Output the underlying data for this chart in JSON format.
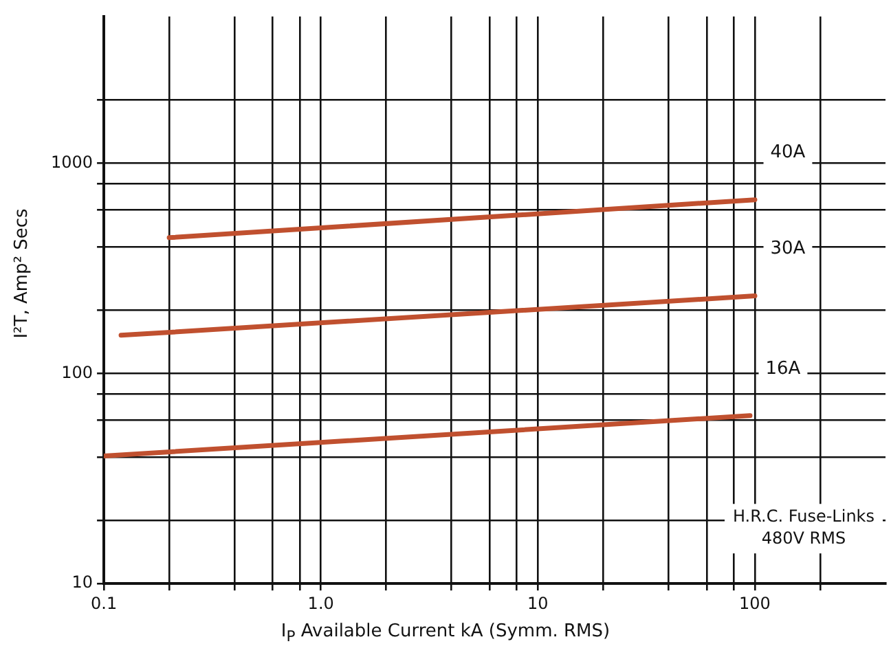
{
  "chart_data": {
    "type": "line",
    "xlabel": "I$_{P}$ Available Current kA (Symm. RMS)",
    "ylabel": "I²T, Amp² Secs",
    "log": "xy",
    "grid": true,
    "legend": false,
    "marker": "none",
    "line_style": "solid",
    "xlim": [
      0.1,
      400
    ],
    "ylim": [
      10,
      5000
    ],
    "xticks": [
      {
        "value": 0.1,
        "label": "0.1"
      },
      {
        "value": 0.2,
        "label": null
      },
      {
        "value": 0.4,
        "label": null
      },
      {
        "value": 0.6,
        "label": null
      },
      {
        "value": 0.8,
        "label": null
      },
      {
        "value": 1,
        "label": "1.0"
      },
      {
        "value": 2,
        "label": null
      },
      {
        "value": 4,
        "label": null
      },
      {
        "value": 6,
        "label": null
      },
      {
        "value": 8,
        "label": null
      },
      10,
      {
        "value": 20,
        "label": null
      },
      {
        "value": 40,
        "label": null
      },
      {
        "value": 60,
        "label": null
      },
      {
        "value": 80,
        "label": null
      },
      100,
      {
        "value": 200,
        "label": null
      }
    ],
    "yticks": [
      10,
      {
        "value": 20,
        "label": null
      },
      {
        "value": 40,
        "label": null
      },
      {
        "value": 60,
        "label": null
      },
      {
        "value": 80,
        "label": null
      },
      100,
      {
        "value": 200,
        "label": null
      },
      {
        "value": 400,
        "label": null
      },
      {
        "value": 600,
        "label": null
      },
      {
        "value": 800,
        "label": null
      },
      1000,
      {
        "value": 2000,
        "label": null
      }
    ],
    "series": [
      {
        "name": "40A",
        "color": "#c0502f",
        "x": [
          0.2,
          100
        ],
        "values": [
          443,
          671
        ]
      },
      {
        "name": "30A",
        "color": "#c0502f",
        "x": [
          0.12,
          100
        ],
        "values": [
          152,
          234
        ]
      },
      {
        "name": "16A",
        "color": "#c0502f",
        "x": [
          0.1,
          95
        ],
        "values": [
          40.5,
          63
        ]
      }
    ],
    "annotations": [
      "H.R.C. Fuse-Links",
      "480V RMS"
    ]
  }
}
